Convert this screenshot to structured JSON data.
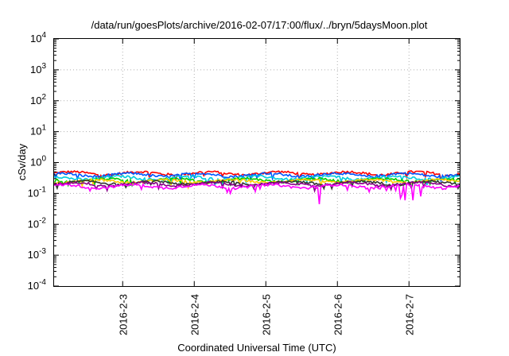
{
  "chart_data": {
    "type": "line",
    "title": "/data/run/goesPlots/archive/2016-02-07/17:00/flux/../bryn/5daysMoon.plot",
    "xlabel": "Coordinated Universal Time (UTC)",
    "ylabel": "cSv/day",
    "y_scale": "log",
    "ylim": [
      0.0001,
      10000
    ],
    "xlim": [
      "2016-02-02 01:00",
      "2016-02-07 17:00"
    ],
    "x_ticks": [
      "2016-2-3",
      "2016-2-4",
      "2016-2-5",
      "2016-2-6",
      "2016-2-7"
    ],
    "y_ticks": [
      {
        "value": 0.0001,
        "base": "10",
        "exp": "-4"
      },
      {
        "value": 0.001,
        "base": "10",
        "exp": "-3"
      },
      {
        "value": 0.01,
        "base": "10",
        "exp": "-2"
      },
      {
        "value": 0.1,
        "base": "10",
        "exp": "-1"
      },
      {
        "value": 1,
        "base": "10",
        "exp": "0"
      },
      {
        "value": 10,
        "base": "10",
        "exp": "1"
      },
      {
        "value": 100,
        "base": "10",
        "exp": "2"
      },
      {
        "value": 1000,
        "base": "10",
        "exp": "3"
      },
      {
        "value": 10000,
        "base": "10",
        "exp": "4"
      }
    ],
    "grid": true,
    "series": [
      {
        "color": "#ff0000",
        "base": 0.45
      },
      {
        "color": "#0055ff",
        "base": 0.4
      },
      {
        "color": "#00ccdd",
        "base": 0.32
      },
      {
        "color": "#00cc00",
        "base": 0.27
      },
      {
        "color": "#ffcc00",
        "base": 0.25
      },
      {
        "color": "#333333",
        "base": 0.22
      },
      {
        "color": "#880088",
        "base": 0.2
      },
      {
        "color": "#ff00ff",
        "base": 0.17,
        "dips": [
          {
            "x": 0.6535,
            "y": 0.045
          },
          {
            "x": 0.8525,
            "y": 0.07
          },
          {
            "x": 0.8578,
            "y": 0.09
          },
          {
            "x": 0.8667,
            "y": 0.06
          },
          {
            "x": 0.8858,
            "y": 0.06
          },
          {
            "x": 0.9047,
            "y": 0.08
          }
        ]
      }
    ]
  }
}
